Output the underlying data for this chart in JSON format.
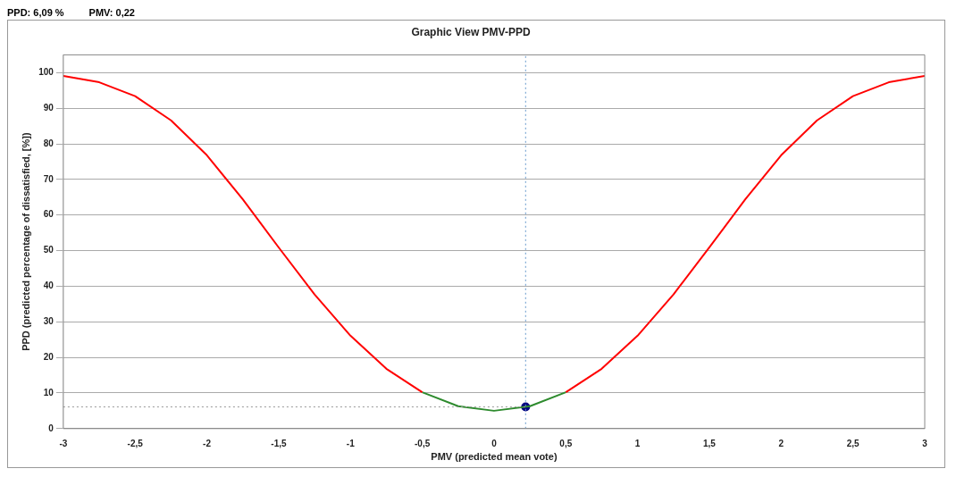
{
  "chart_data": {
    "type": "line",
    "title": "Graphic View PMV-PPD",
    "xlabel": "PMV (predicted mean vote)",
    "ylabel": "PPD (predicted percentage of dissatisfied, [%])",
    "annotations": [
      "PPD: 6,09 %",
      "PMV: 0,22"
    ],
    "xlim": [
      -3,
      3
    ],
    "xticks": [
      {
        "value": -3,
        "label": "-3"
      },
      {
        "value": -2.5,
        "label": "-2,5"
      },
      {
        "value": -2,
        "label": "-2"
      },
      {
        "value": -1.5,
        "label": "-1,5"
      },
      {
        "value": -1,
        "label": "-1"
      },
      {
        "value": -0.5,
        "label": "-0,5"
      },
      {
        "value": 0,
        "label": "0"
      },
      {
        "value": 0.5,
        "label": "0,5"
      },
      {
        "value": 1,
        "label": "1"
      },
      {
        "value": 1.5,
        "label": "1,5"
      },
      {
        "value": 2,
        "label": "2"
      },
      {
        "value": 2.5,
        "label": "2,5"
      },
      {
        "value": 3,
        "label": "3"
      }
    ],
    "ylim": [
      0,
      105
    ],
    "yticks": [
      0,
      10,
      20,
      30,
      40,
      50,
      60,
      70,
      80,
      90,
      100
    ],
    "grid": "y",
    "legend": false,
    "marker": "none",
    "series": [
      {
        "color": "#ff0000",
        "x": [
          -3,
          -2.75,
          -2.5,
          -2.25,
          -2,
          -1.75,
          -1.5,
          -1.25,
          -1,
          -0.75,
          -0.5
        ],
        "values": [
          99.1,
          97.3,
          93.4,
          86.6,
          76.8,
          64.4,
          50.9,
          37.7,
          26.1,
          16.8,
          10.2
        ]
      },
      {
        "color": "#2e8b2e",
        "x": [
          -0.5,
          -0.25,
          0,
          0.25,
          0.5
        ],
        "values": [
          10.2,
          6.3,
          5,
          6.3,
          10.2
        ]
      },
      {
        "color": "#ff0000",
        "x": [
          0.5,
          0.75,
          1,
          1.25,
          1.5,
          1.75,
          2,
          2.25,
          2.5,
          2.75,
          3
        ],
        "values": [
          10.2,
          16.8,
          26.1,
          37.7,
          50.9,
          64.4,
          76.8,
          86.6,
          93.4,
          97.3,
          99.1
        ]
      },
      {
        "type": "scatter",
        "marker": "circle",
        "color": "#000080",
        "x": [
          0.22
        ],
        "values": [
          6.09
        ]
      }
    ],
    "ref_lines": [
      {
        "axis": "y",
        "value": 6.09,
        "line_style": "dotted",
        "color": "#999999"
      },
      {
        "axis": "x",
        "value": 0.22,
        "line_style": "dotted",
        "color": "#6699cc"
      }
    ]
  }
}
